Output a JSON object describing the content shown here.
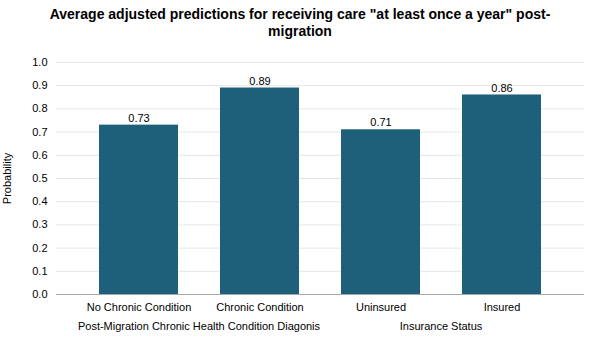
{
  "chart_data": {
    "type": "bar",
    "title": "Average adjusted predictions for receiving care \"at least once a year\" post-\nmigration",
    "y_label": "Probability",
    "categories": [
      "No Chronic Condition",
      "Chronic Condition",
      "Uninsured",
      "Insured"
    ],
    "values": [
      0.73,
      0.89,
      0.71,
      0.86
    ],
    "color": "#1e5f7a",
    "annotations": [
      "Post-Migration Chronic Health Condition Diagonis",
      "Insurance Status"
    ],
    "ylim": [
      0,
      1.0
    ],
    "yticks": [
      {
        "value": 0,
        "label": "0.0"
      },
      0.1,
      0.2,
      0.3,
      0.4,
      0.5,
      0.6,
      0.7,
      0.8,
      0.9,
      {
        "value": 1,
        "label": "1.0"
      }
    ],
    "grid": true,
    "data_labels": true
  }
}
